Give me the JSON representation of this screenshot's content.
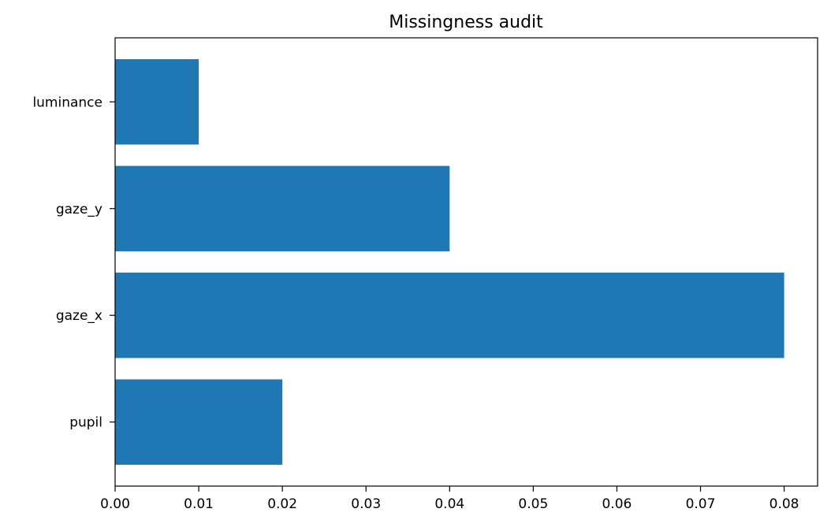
{
  "chart_data": {
    "type": "bar",
    "orientation": "horizontal",
    "title": "Missingness audit",
    "xlabel": "",
    "ylabel": "",
    "categories": [
      "pupil",
      "gaze_x",
      "gaze_y",
      "luminance"
    ],
    "values": [
      0.02,
      0.08,
      0.04,
      0.01
    ],
    "xlim": [
      0,
      0.084
    ],
    "xticks": [
      0.0,
      0.01,
      0.02,
      0.03,
      0.04,
      0.05,
      0.06,
      0.07,
      0.08
    ],
    "xtick_labels": [
      "0.00",
      "0.01",
      "0.02",
      "0.03",
      "0.04",
      "0.05",
      "0.06",
      "0.07",
      "0.08"
    ],
    "grid": false,
    "legend": "none",
    "bar_color": "#1f77b4"
  }
}
